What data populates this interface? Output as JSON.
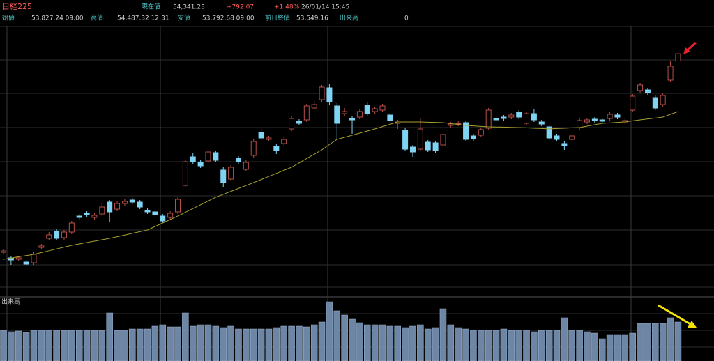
{
  "header": {
    "title": "日経225",
    "price_label": "現在値",
    "price": "54,341.23",
    "change": "+792.07",
    "change_pct": "+1.48%",
    "datetime": "26/01/14 15:45",
    "stats": [
      {
        "label": "始値",
        "value": "53,827.24 09:00"
      },
      {
        "label": "高値",
        "value": "54,487.32 12:31"
      },
      {
        "label": "安値",
        "value": "53,792.68 09:00"
      },
      {
        "label": "前日終値",
        "value": "53,549.16"
      },
      {
        "label": "出来高",
        "value": "0"
      }
    ]
  },
  "chart_data": [
    {
      "type": "candlestick",
      "up_color": "#b8504a",
      "down_color": "#7fd3f3",
      "ylim": [
        37600,
        56300
      ],
      "open": [
        40100,
        39700,
        39600,
        39400,
        39350,
        40450,
        41100,
        41600,
        41150,
        41550,
        42700,
        42900,
        42600,
        42850,
        43700,
        43200,
        43600,
        43850,
        43700,
        43100,
        43000,
        42700,
        42600,
        43000,
        44900,
        46950,
        46550,
        46650,
        47250,
        46000,
        45350,
        46850,
        46050,
        47050,
        48700,
        48200,
        47700,
        47900,
        48950,
        49500,
        49600,
        50450,
        51050,
        51900,
        50600,
        50050,
        49700,
        49800,
        50650,
        50200,
        50300,
        49950,
        49350,
        48850,
        47650,
        47500,
        48000,
        47950,
        47800,
        49200,
        49300,
        49400,
        48450,
        48500,
        49000,
        49700,
        49800,
        49800,
        50150,
        49350,
        50050,
        49450,
        49100,
        48450,
        47900,
        48200,
        49050,
        49450,
        49650,
        49600,
        49700,
        49950,
        49450,
        50300,
        51700,
        51750,
        51200,
        50700,
        52450,
        53827.24
      ],
      "high": [
        40350,
        39800,
        39850,
        39550,
        40100,
        40700,
        41550,
        41800,
        41700,
        42350,
        42850,
        43050,
        42900,
        43600,
        43850,
        43750,
        43900,
        44000,
        43850,
        43250,
        43150,
        42850,
        43050,
        44050,
        46750,
        47200,
        46700,
        47450,
        47400,
        46200,
        46350,
        47000,
        46700,
        48200,
        48950,
        48450,
        47850,
        48350,
        49850,
        49650,
        50750,
        51000,
        52100,
        52200,
        50800,
        50450,
        49850,
        50350,
        50850,
        50550,
        50750,
        50100,
        49600,
        49000,
        47800,
        49700,
        48150,
        48100,
        48700,
        49450,
        49500,
        49550,
        48600,
        49050,
        50450,
        49850,
        49950,
        50100,
        50300,
        50200,
        50350,
        49600,
        49250,
        48600,
        48050,
        48600,
        49700,
        49750,
        49800,
        49750,
        50150,
        50100,
        49700,
        51450,
        52250,
        51900,
        51350,
        51500,
        53800,
        54487.32
      ],
      "low": [
        39950,
        39200,
        39450,
        39100,
        39200,
        40300,
        40950,
        40950,
        41000,
        41400,
        42450,
        42650,
        42450,
        42700,
        42300,
        43050,
        43450,
        43550,
        43200,
        42850,
        42650,
        42200,
        42450,
        42850,
        44750,
        46450,
        46150,
        46500,
        46550,
        44800,
        45200,
        46450,
        45900,
        46900,
        48150,
        48050,
        47150,
        47750,
        48800,
        49200,
        49450,
        50300,
        50900,
        50700,
        48200,
        49900,
        48600,
        49650,
        49900,
        50050,
        50150,
        49400,
        48950,
        47350,
        46950,
        47350,
        47300,
        47250,
        47650,
        49050,
        49150,
        48050,
        48100,
        48350,
        48850,
        49450,
        49550,
        49650,
        49650,
        49200,
        49450,
        49150,
        48150,
        48050,
        47450,
        48050,
        48900,
        49300,
        49400,
        49350,
        49550,
        49650,
        49300,
        50150,
        51550,
        51400,
        50300,
        50550,
        52300,
        53792.68
      ],
      "close": [
        40200,
        39550,
        39700,
        39250,
        39950,
        40550,
        41350,
        41100,
        41550,
        42200,
        42600,
        42800,
        42750,
        43350,
        43000,
        43600,
        43750,
        43700,
        43350,
        43000,
        42800,
        42350,
        42900,
        43900,
        46600,
        46600,
        46300,
        47300,
        46700,
        45100,
        46200,
        46600,
        46550,
        48050,
        48300,
        48300,
        47400,
        48200,
        49700,
        49350,
        50600,
        50700,
        51950,
        50900,
        49350,
        50200,
        49600,
        50200,
        50050,
        50400,
        50600,
        49550,
        49450,
        47500,
        47300,
        48950,
        47450,
        47400,
        48550,
        49300,
        49350,
        48200,
        48250,
        48900,
        50300,
        49600,
        49700,
        49950,
        49800,
        50050,
        49600,
        49300,
        48300,
        48200,
        47750,
        48450,
        49550,
        49600,
        49550,
        49500,
        50000,
        49800,
        49550,
        51300,
        52100,
        51550,
        50450,
        51350,
        53450,
        54341.23
      ],
      "ma": {
        "color": "#a8a030",
        "values": [
          39600,
          39690,
          39780,
          39860,
          39950,
          40080,
          40210,
          40340,
          40470,
          40600,
          40700,
          40800,
          40900,
          41000,
          41100,
          41220,
          41340,
          41460,
          41580,
          41700,
          41950,
          42200,
          42450,
          42700,
          42970,
          43240,
          43510,
          43780,
          44050,
          44260,
          44470,
          44680,
          44890,
          45100,
          45320,
          45540,
          45760,
          45980,
          46200,
          46510,
          46830,
          47140,
          47450,
          47830,
          48200,
          48350,
          48500,
          48650,
          48800,
          48950,
          49120,
          49280,
          49450,
          49450,
          49450,
          49450,
          49430,
          49420,
          49400,
          49330,
          49270,
          49200,
          49170,
          49130,
          49100,
          49090,
          49080,
          49060,
          49050,
          49030,
          49000,
          48980,
          48950,
          48980,
          49000,
          49030,
          49050,
          49150,
          49250,
          49350,
          49380,
          49420,
          49450,
          49530,
          49600,
          49670,
          49730,
          49800,
          50000,
          50200
        ]
      }
    },
    {
      "type": "bar",
      "title": "出来高",
      "color": "#6d86a6",
      "ylim": [
        0,
        90
      ],
      "values": [
        44,
        42,
        43,
        41,
        44,
        44,
        44,
        44,
        44,
        44,
        44,
        44,
        44,
        44,
        69,
        44,
        44,
        46,
        46,
        46,
        50,
        52,
        49,
        49,
        69,
        50,
        52,
        52,
        50,
        48,
        50,
        46,
        46,
        46,
        46,
        46,
        48,
        50,
        50,
        50,
        49,
        52,
        56,
        85,
        72,
        66,
        60,
        55,
        52,
        52,
        52,
        50,
        50,
        48,
        50,
        52,
        46,
        48,
        75,
        52,
        48,
        46,
        44,
        44,
        44,
        44,
        46,
        44,
        44,
        44,
        42,
        44,
        44,
        44,
        62,
        44,
        44,
        42,
        40,
        32,
        38,
        38,
        38,
        40,
        54,
        54,
        54,
        54,
        62,
        56
      ]
    }
  ]
}
